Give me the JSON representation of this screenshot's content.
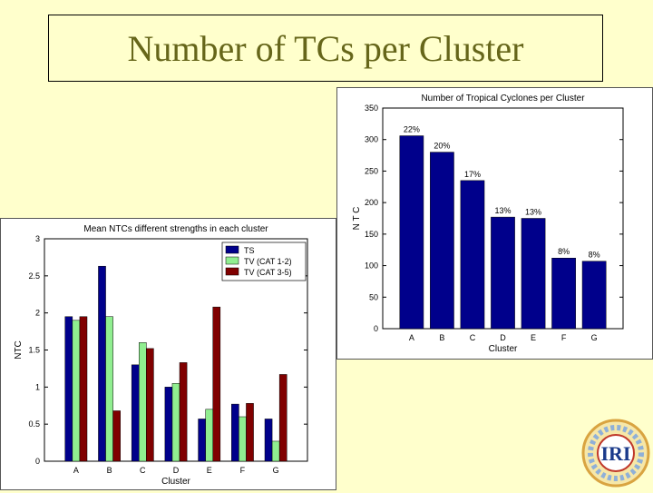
{
  "slide": {
    "title": "Number of TCs per Cluster"
  },
  "logo": {
    "text": "IRI"
  },
  "chart_data": [
    {
      "type": "bar",
      "title": "Number of Tropical Cyclones per Cluster",
      "xlabel": "Cluster",
      "ylabel": "N T C",
      "categories": [
        "A",
        "B",
        "C",
        "D",
        "E",
        "F",
        "G"
      ],
      "values": [
        306,
        280,
        235,
        177,
        175,
        112,
        107
      ],
      "labels": [
        "22%",
        "20%",
        "17%",
        "13%",
        "13%",
        "8%",
        "8%"
      ],
      "ylim": [
        0,
        350
      ],
      "yticks": [
        0,
        50,
        100,
        150,
        200,
        250,
        300,
        350
      ],
      "color": "#00008b"
    },
    {
      "type": "bar",
      "title": "Mean NTCs different strengths in each cluster",
      "xlabel": "Cluster",
      "ylabel": "NTC",
      "categories": [
        "A",
        "B",
        "C",
        "D",
        "E",
        "F",
        "G"
      ],
      "ylim": [
        0,
        3
      ],
      "yticks": [
        0,
        0.5,
        1,
        1.5,
        2,
        2.5,
        3
      ],
      "legend_position": "top-right",
      "series": [
        {
          "name": "TS",
          "color": "#00008b",
          "values": [
            1.95,
            2.63,
            1.3,
            1.0,
            0.57,
            0.77,
            0.57
          ]
        },
        {
          "name": "TV (CAT 1-2)",
          "color": "#90ee90",
          "values": [
            1.9,
            1.95,
            1.6,
            1.05,
            0.7,
            0.6,
            0.27
          ]
        },
        {
          "name": "TV (CAT 3-5)",
          "color": "#800000",
          "values": [
            1.95,
            0.68,
            1.52,
            1.33,
            2.08,
            0.78,
            1.17
          ]
        }
      ]
    }
  ]
}
